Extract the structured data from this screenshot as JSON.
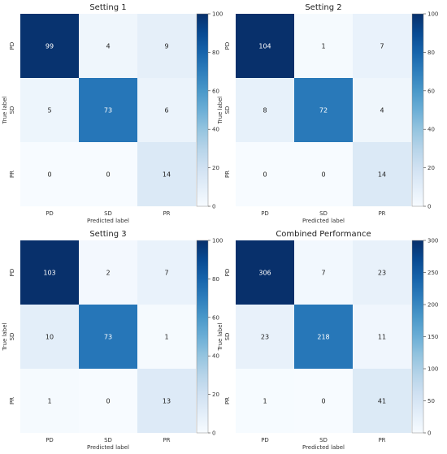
{
  "chart_data": [
    {
      "type": "heatmap",
      "title": "Setting 1",
      "xlabel": "Predicted label",
      "ylabel": "True label",
      "x_categories": [
        "PD",
        "SD",
        "PR"
      ],
      "y_categories": [
        "PD",
        "SD",
        "PR"
      ],
      "values": [
        [
          99,
          4,
          9
        ],
        [
          5,
          73,
          6
        ],
        [
          0,
          0,
          14
        ]
      ],
      "colorbar": {
        "range": [
          0,
          100
        ],
        "ticks": [
          0,
          20,
          40,
          60,
          80,
          100
        ],
        "colormap": "Blues"
      }
    },
    {
      "type": "heatmap",
      "title": "Setting 2",
      "xlabel": "Predicted label",
      "ylabel": "True label",
      "x_categories": [
        "PD",
        "SD",
        "PR"
      ],
      "y_categories": [
        "PD",
        "SD",
        "PR"
      ],
      "values": [
        [
          104,
          1,
          7
        ],
        [
          8,
          72,
          4
        ],
        [
          0,
          0,
          14
        ]
      ],
      "colorbar": {
        "range": [
          0,
          100
        ],
        "ticks": [
          0,
          20,
          40,
          60,
          80,
          100
        ],
        "colormap": "Blues"
      }
    },
    {
      "type": "heatmap",
      "title": "Setting 3",
      "xlabel": "Predicted label",
      "ylabel": "True label",
      "x_categories": [
        "PD",
        "SD",
        "PR"
      ],
      "y_categories": [
        "PD",
        "SD",
        "PR"
      ],
      "values": [
        [
          103,
          2,
          7
        ],
        [
          10,
          73,
          1
        ],
        [
          1,
          0,
          13
        ]
      ],
      "colorbar": {
        "range": [
          0,
          100
        ],
        "ticks": [
          0,
          20,
          40,
          60,
          80,
          100
        ],
        "colormap": "Blues"
      }
    },
    {
      "type": "heatmap",
      "title": "Combined Performance",
      "xlabel": "Predicted label",
      "ylabel": "True label",
      "x_categories": [
        "PD",
        "SD",
        "PR"
      ],
      "y_categories": [
        "PD",
        "SD",
        "PR"
      ],
      "values": [
        [
          306,
          7,
          23
        ],
        [
          23,
          218,
          11
        ],
        [
          1,
          0,
          41
        ]
      ],
      "colorbar": {
        "range": [
          0,
          300
        ],
        "ticks": [
          0,
          50,
          100,
          150,
          200,
          250,
          300
        ],
        "colormap": "Blues"
      }
    }
  ]
}
